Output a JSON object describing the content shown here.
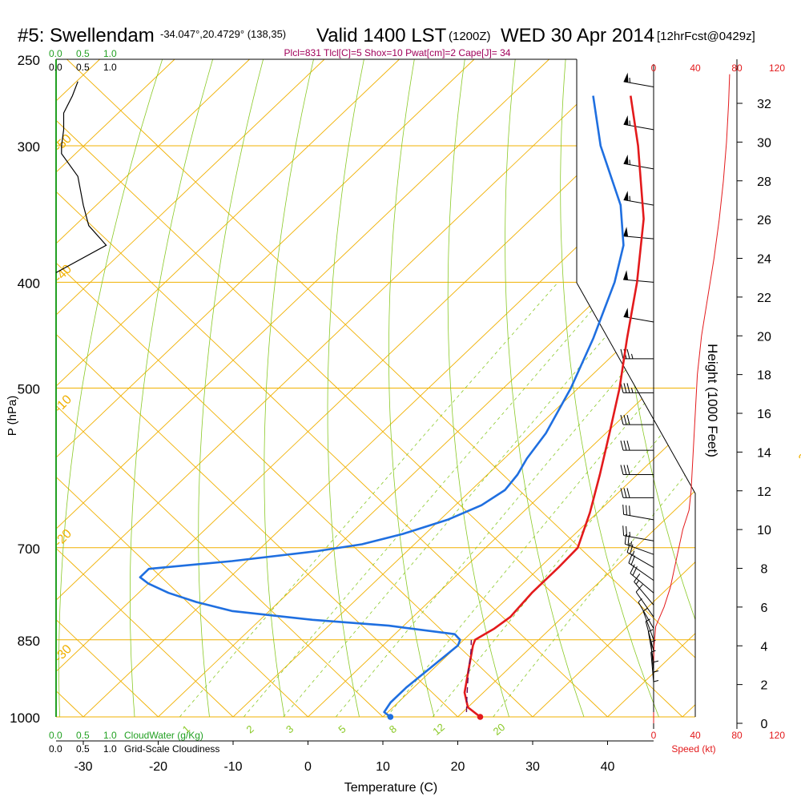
{
  "header": {
    "station": "#5: Swellendam",
    "coords": "-34.047°,20.4729° (138,35)",
    "valid": "Valid 1400 LST",
    "zulu": "(1200Z)",
    "date": "WED 30 Apr 2014",
    "forecast": "[12hrFcst@0429z]"
  },
  "indices_text": "Plcl=831 Tlcl[C]=5 Shox=10 Pwat[cm]=2 Cape[J]= 34",
  "colors": {
    "isotherm": "#f0b000",
    "dry_adiabat": "#8ac926",
    "mixing_ratio": "#8ac926",
    "temperature": "#e31a1c",
    "dewpoint": "#1f6fe0",
    "parcel": "#6a0f5a",
    "cloudwater": "#22a022",
    "red_axis": "#e31a1c",
    "indices": "#a0005a"
  },
  "chart_data": {
    "type": "line",
    "title": "Skew-T log-P sounding",
    "xlabel": "Temperature (C)",
    "ylabel": "P (hPa)",
    "right_ylabel": "Height (1000 Feet)",
    "x_ticks": [
      "-30",
      "-20",
      "-10",
      "0",
      "10",
      "20",
      "30",
      "40"
    ],
    "y_ticks": [
      "250",
      "300",
      "400",
      "500",
      "700",
      "850",
      "1000"
    ],
    "height_ticks": [
      "0",
      "2",
      "4",
      "6",
      "8",
      "10",
      "12",
      "14",
      "16",
      "18",
      "20",
      "22",
      "24",
      "26",
      "28",
      "30",
      "32"
    ],
    "isotherm_labels": [
      "0",
      "10",
      "20",
      "30",
      "-10",
      "-20",
      "-30",
      "-40",
      "-50"
    ],
    "mixing_ratio_labels": [
      "1",
      "2",
      "3",
      "5",
      "8",
      "12",
      "20"
    ],
    "cloud_scale": {
      "top_green": [
        "0.0",
        "0.5",
        "1.0"
      ],
      "top_black": [
        "0.0",
        "0.5",
        "1.0"
      ],
      "bottom_green": [
        "0.0",
        "0.5",
        "1.0"
      ],
      "bottom_black": [
        "0.0",
        "0.5",
        "1.0"
      ],
      "cloudwater_label": "CloudWater (g/Kg)",
      "cloudiness_label": "Grid-Scale Cloudiness"
    },
    "speed_scale": {
      "top": [
        "0",
        "40",
        "80",
        "120"
      ],
      "bottom": [
        "0",
        "40",
        "80",
        "120"
      ],
      "label": "Speed (kt)"
    },
    "series": [
      {
        "name": "Temperature",
        "unit": "C",
        "points": [
          {
            "p": 1000,
            "t": 23
          },
          {
            "p": 980,
            "t": 20
          },
          {
            "p": 950,
            "t": 17.5
          },
          {
            "p": 900,
            "t": 14.5
          },
          {
            "p": 860,
            "t": 12
          },
          {
            "p": 850,
            "t": 11.5
          },
          {
            "p": 840,
            "t": 12
          },
          {
            "p": 830,
            "t": 12.5
          },
          {
            "p": 810,
            "t": 13
          },
          {
            "p": 770,
            "t": 12.5
          },
          {
            "p": 730,
            "t": 12.5
          },
          {
            "p": 700,
            "t": 12.3
          },
          {
            "p": 650,
            "t": 9
          },
          {
            "p": 600,
            "t": 5
          },
          {
            "p": 550,
            "t": 0.5
          },
          {
            "p": 500,
            "t": -4.5
          },
          {
            "p": 450,
            "t": -10.5
          },
          {
            "p": 400,
            "t": -17
          },
          {
            "p": 350,
            "t": -25
          },
          {
            "p": 300,
            "t": -36
          },
          {
            "p": 270,
            "t": -44
          }
        ]
      },
      {
        "name": "Dewpoint",
        "unit": "C",
        "points": [
          {
            "p": 1000,
            "t": 11
          },
          {
            "p": 990,
            "t": 9.5
          },
          {
            "p": 970,
            "t": 9
          },
          {
            "p": 940,
            "t": 9
          },
          {
            "p": 900,
            "t": 9.5
          },
          {
            "p": 860,
            "t": 10
          },
          {
            "p": 850,
            "t": 9.5
          },
          {
            "p": 840,
            "t": 8
          },
          {
            "p": 825,
            "t": -2
          },
          {
            "p": 815,
            "t": -13
          },
          {
            "p": 800,
            "t": -25
          },
          {
            "p": 785,
            "t": -31
          },
          {
            "p": 770,
            "t": -36
          },
          {
            "p": 755,
            "t": -40
          },
          {
            "p": 745,
            "t": -42
          },
          {
            "p": 732,
            "t": -42
          },
          {
            "p": 720,
            "t": -32
          },
          {
            "p": 705,
            "t": -22
          },
          {
            "p": 695,
            "t": -17
          },
          {
            "p": 680,
            "t": -13
          },
          {
            "p": 660,
            "t": -9
          },
          {
            "p": 640,
            "t": -6.5
          },
          {
            "p": 620,
            "t": -5.5
          },
          {
            "p": 600,
            "t": -6
          },
          {
            "p": 580,
            "t": -7
          },
          {
            "p": 550,
            "t": -8
          },
          {
            "p": 500,
            "t": -11
          },
          {
            "p": 450,
            "t": -15
          },
          {
            "p": 400,
            "t": -20
          },
          {
            "p": 370,
            "t": -24
          },
          {
            "p": 340,
            "t": -30
          },
          {
            "p": 300,
            "t": -41
          },
          {
            "p": 270,
            "t": -49
          }
        ]
      },
      {
        "name": "Parcel",
        "unit": "C",
        "points": [
          {
            "p": 990,
            "t": 20.5
          },
          {
            "p": 960,
            "t": 18.5
          },
          {
            "p": 930,
            "t": 16.5
          },
          {
            "p": 900,
            "t": 14.5
          },
          {
            "p": 870,
            "t": 12.5
          },
          {
            "p": 850,
            "t": 11
          }
        ]
      }
    ],
    "surface_points": [
      {
        "name": "Surface temperature",
        "p": 1000,
        "t": 23
      },
      {
        "name": "Surface dewpoint",
        "p": 1000,
        "t": 11
      }
    ],
    "cloudiness_profile": [
      {
        "p": 392,
        "v": 0.0
      },
      {
        "p": 370,
        "v": 0.46
      },
      {
        "p": 355,
        "v": 0.3
      },
      {
        "p": 340,
        "v": 0.25
      },
      {
        "p": 320,
        "v": 0.2
      },
      {
        "p": 305,
        "v": 0.05
      },
      {
        "p": 300,
        "v": 0.05
      },
      {
        "p": 290,
        "v": 0.07
      },
      {
        "p": 280,
        "v": 0.07
      },
      {
        "p": 270,
        "v": 0.15
      },
      {
        "p": 262,
        "v": 0.2
      }
    ],
    "wind_speed_profile": [
      {
        "h": 0,
        "spd": 0
      },
      {
        "h": 1,
        "spd": 0
      },
      {
        "h": 2,
        "spd": 0
      },
      {
        "h": 3,
        "spd": 0
      },
      {
        "h": 4,
        "spd": 0.5
      },
      {
        "h": 5,
        "spd": 2
      },
      {
        "h": 6,
        "spd": 10
      },
      {
        "h": 7,
        "spd": 16
      },
      {
        "h": 8,
        "spd": 20
      },
      {
        "h": 9,
        "spd": 24
      },
      {
        "h": 10,
        "spd": 28
      },
      {
        "h": 11,
        "spd": 34
      },
      {
        "h": 12,
        "spd": 36
      },
      {
        "h": 13,
        "spd": 37
      },
      {
        "h": 14,
        "spd": 38
      },
      {
        "h": 16,
        "spd": 40
      },
      {
        "h": 18,
        "spd": 42
      },
      {
        "h": 20,
        "spd": 46
      },
      {
        "h": 22,
        "spd": 52
      },
      {
        "h": 24,
        "spd": 58
      },
      {
        "h": 26,
        "spd": 63
      },
      {
        "h": 28,
        "spd": 67
      },
      {
        "h": 30,
        "spd": 70
      },
      {
        "h": 32,
        "spd": 72
      },
      {
        "h": 33.5,
        "spd": 73
      }
    ],
    "wind_barbs": [
      {
        "p": 265,
        "dir": 280,
        "spd": 55
      },
      {
        "p": 290,
        "dir": 280,
        "spd": 55
      },
      {
        "p": 315,
        "dir": 280,
        "spd": 55
      },
      {
        "p": 340,
        "dir": 280,
        "spd": 55
      },
      {
        "p": 365,
        "dir": 275,
        "spd": 50
      },
      {
        "p": 400,
        "dir": 275,
        "spd": 50
      },
      {
        "p": 435,
        "dir": 280,
        "spd": 50
      },
      {
        "p": 470,
        "dir": 270,
        "spd": 35
      },
      {
        "p": 505,
        "dir": 270,
        "spd": 35
      },
      {
        "p": 540,
        "dir": 270,
        "spd": 30
      },
      {
        "p": 570,
        "dir": 270,
        "spd": 30
      },
      {
        "p": 600,
        "dir": 270,
        "spd": 30
      },
      {
        "p": 630,
        "dir": 270,
        "spd": 30
      },
      {
        "p": 660,
        "dir": 280,
        "spd": 30
      },
      {
        "p": 690,
        "dir": 280,
        "spd": 25
      },
      {
        "p": 710,
        "dir": 290,
        "spd": 25
      },
      {
        "p": 730,
        "dir": 300,
        "spd": 25
      },
      {
        "p": 750,
        "dir": 305,
        "spd": 20
      },
      {
        "p": 770,
        "dir": 310,
        "spd": 20
      },
      {
        "p": 790,
        "dir": 320,
        "spd": 15
      },
      {
        "p": 810,
        "dir": 325,
        "spd": 10
      },
      {
        "p": 830,
        "dir": 330,
        "spd": 8
      },
      {
        "p": 850,
        "dir": 340,
        "spd": 5
      },
      {
        "p": 870,
        "dir": 345,
        "spd": 5
      },
      {
        "p": 890,
        "dir": 350,
        "spd": 5
      },
      {
        "p": 910,
        "dir": 355,
        "spd": 5
      },
      {
        "p": 930,
        "dir": 355,
        "spd": 5
      },
      {
        "p": 950,
        "dir": 360,
        "spd": 5
      },
      {
        "p": 970,
        "dir": 360,
        "spd": 5
      },
      {
        "p": 990,
        "dir": 360,
        "spd": 5
      }
    ]
  }
}
